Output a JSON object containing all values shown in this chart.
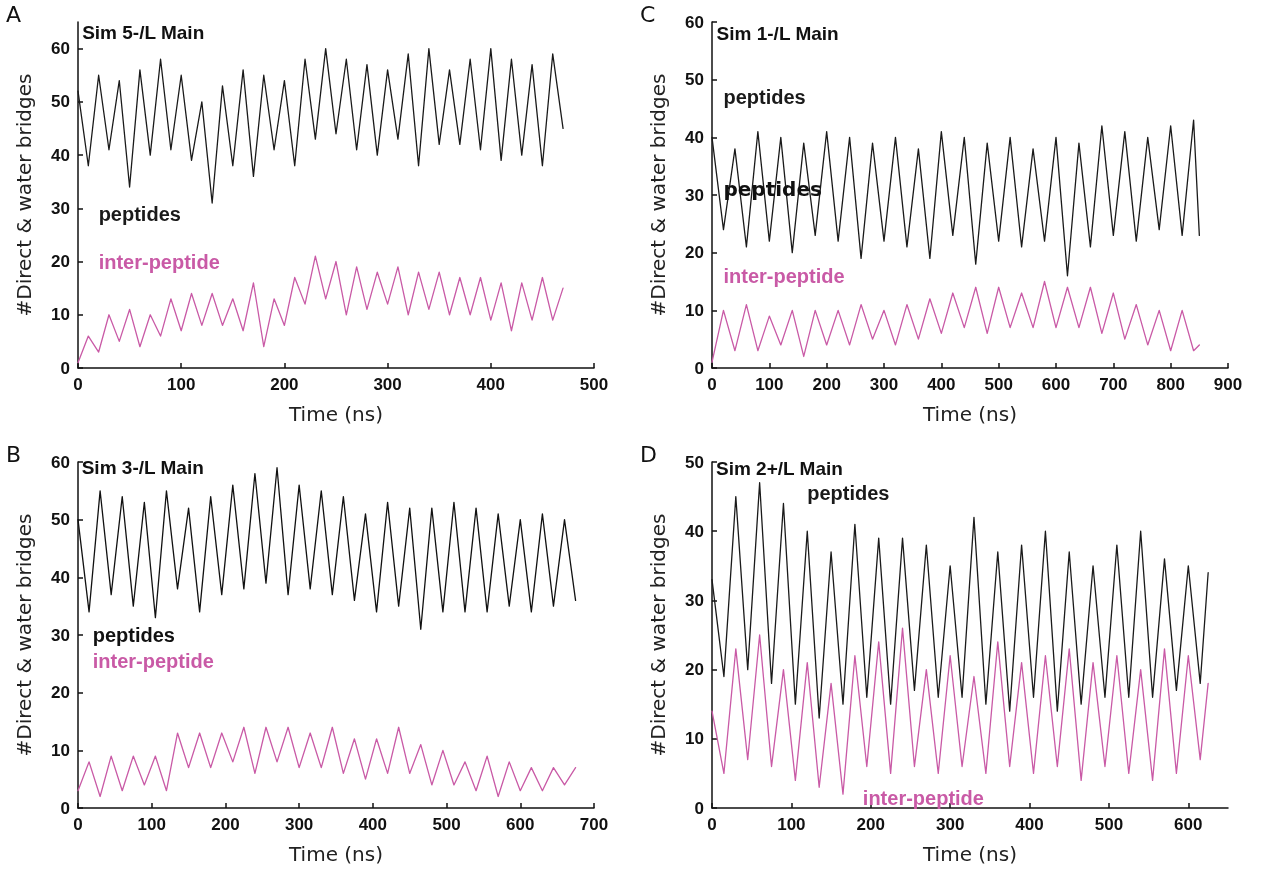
{
  "chart_data": [
    {
      "type": "line",
      "title": "Sim 5-/L Main",
      "xlabel": "Time (ns)",
      "ylabel": "#Direct & water bridges",
      "annotations": [
        "A"
      ],
      "marker": "none",
      "line_style": "solid",
      "xlim": [
        0,
        500
      ],
      "xticks": [
        0,
        100,
        200,
        300,
        400,
        500
      ],
      "ylim": [
        0,
        65
      ],
      "yticks": [
        0,
        10,
        20,
        30,
        40,
        50,
        60
      ],
      "x": [
        0,
        10,
        20,
        30,
        40,
        50,
        60,
        70,
        80,
        90,
        100,
        110,
        120,
        130,
        140,
        150,
        160,
        170,
        180,
        190,
        200,
        210,
        220,
        230,
        240,
        250,
        260,
        270,
        280,
        290,
        300,
        310,
        320,
        330,
        340,
        350,
        360,
        370,
        380,
        390,
        400,
        410,
        420,
        430,
        440,
        450,
        460,
        470
      ],
      "series": [
        {
          "name": "peptides",
          "color": "#1a1a1a",
          "values": [
            52,
            38,
            55,
            41,
            54,
            34,
            56,
            40,
            58,
            41,
            55,
            39,
            50,
            31,
            53,
            38,
            56,
            36,
            55,
            41,
            54,
            38,
            58,
            43,
            60,
            44,
            58,
            41,
            57,
            40,
            56,
            43,
            59,
            38,
            60,
            42,
            56,
            42,
            58,
            41,
            60,
            39,
            58,
            40,
            57,
            38,
            59,
            45
          ]
        },
        {
          "name": "inter-peptide",
          "color": "#c95aa6",
          "values": [
            1,
            6,
            3,
            10,
            5,
            11,
            4,
            10,
            6,
            13,
            7,
            14,
            8,
            14,
            8,
            13,
            7,
            16,
            4,
            13,
            8,
            17,
            12,
            21,
            13,
            20,
            10,
            19,
            11,
            18,
            12,
            19,
            10,
            18,
            11,
            18,
            10,
            17,
            10,
            17,
            9,
            16,
            7,
            16,
            9,
            17,
            9,
            15
          ]
        }
      ]
    },
    {
      "type": "line",
      "title": "Sim 1-/L Main",
      "xlabel": "Time (ns)",
      "ylabel": "#Direct & water bridges",
      "annotations": [
        "C",
        "peptides"
      ],
      "marker": "none",
      "line_style": "solid",
      "xlim": [
        0,
        900
      ],
      "xticks": [
        0,
        100,
        200,
        300,
        400,
        500,
        600,
        700,
        800,
        900
      ],
      "ylim": [
        0,
        60
      ],
      "yticks": [
        0,
        10,
        20,
        30,
        40,
        50,
        60
      ],
      "x": [
        0,
        20,
        40,
        60,
        80,
        100,
        120,
        140,
        160,
        180,
        200,
        220,
        240,
        260,
        280,
        300,
        320,
        340,
        360,
        380,
        400,
        420,
        440,
        460,
        480,
        500,
        520,
        540,
        560,
        580,
        600,
        620,
        640,
        660,
        680,
        700,
        720,
        740,
        760,
        780,
        800,
        820,
        840,
        850
      ],
      "series": [
        {
          "name": "peptides",
          "color": "#1a1a1a",
          "values": [
            40,
            24,
            38,
            21,
            41,
            22,
            40,
            20,
            39,
            23,
            41,
            22,
            40,
            19,
            39,
            22,
            40,
            21,
            38,
            19,
            41,
            23,
            40,
            18,
            39,
            22,
            40,
            21,
            38,
            22,
            40,
            16,
            39,
            21,
            42,
            23,
            41,
            22,
            40,
            24,
            42,
            23,
            43,
            23
          ]
        },
        {
          "name": "inter-peptide",
          "color": "#c95aa6",
          "values": [
            1,
            10,
            3,
            11,
            3,
            9,
            4,
            10,
            2,
            10,
            4,
            10,
            4,
            11,
            5,
            10,
            4,
            11,
            5,
            12,
            6,
            13,
            7,
            14,
            6,
            14,
            7,
            13,
            7,
            15,
            7,
            14,
            7,
            14,
            6,
            13,
            5,
            11,
            4,
            10,
            3,
            10,
            3,
            4
          ]
        }
      ]
    },
    {
      "type": "line",
      "title": "Sim 3-/L Main",
      "xlabel": "Time (ns)",
      "ylabel": "#Direct & water bridges",
      "annotations": [
        "B"
      ],
      "marker": "none",
      "line_style": "solid",
      "xlim": [
        0,
        700
      ],
      "xticks": [
        0,
        100,
        200,
        300,
        400,
        500,
        600,
        700
      ],
      "ylim": [
        0,
        60
      ],
      "yticks": [
        0,
        10,
        20,
        30,
        40,
        50,
        60
      ],
      "x": [
        0,
        15,
        30,
        45,
        60,
        75,
        90,
        105,
        120,
        135,
        150,
        165,
        180,
        195,
        210,
        225,
        240,
        255,
        270,
        285,
        300,
        315,
        330,
        345,
        360,
        375,
        390,
        405,
        420,
        435,
        450,
        465,
        480,
        495,
        510,
        525,
        540,
        555,
        570,
        585,
        600,
        615,
        630,
        645,
        660,
        675
      ],
      "series": [
        {
          "name": "peptides",
          "color": "#111111",
          "values": [
            50,
            34,
            55,
            37,
            54,
            35,
            53,
            33,
            55,
            38,
            52,
            34,
            54,
            37,
            56,
            38,
            58,
            39,
            59,
            37,
            56,
            38,
            55,
            37,
            54,
            36,
            51,
            34,
            53,
            35,
            52,
            31,
            52,
            34,
            53,
            34,
            52,
            34,
            51,
            35,
            50,
            34,
            51,
            35,
            50,
            36
          ]
        },
        {
          "name": "inter-peptide",
          "color": "#c95aa6",
          "values": [
            3,
            8,
            2,
            9,
            3,
            9,
            4,
            9,
            3,
            13,
            7,
            13,
            7,
            13,
            8,
            14,
            6,
            14,
            8,
            14,
            7,
            13,
            7,
            14,
            6,
            12,
            5,
            12,
            6,
            14,
            6,
            11,
            4,
            10,
            4,
            8,
            3,
            9,
            2,
            8,
            3,
            7,
            3,
            7,
            4,
            7
          ]
        }
      ]
    },
    {
      "type": "line",
      "title": "Sim 2+/L Main",
      "xlabel": "Time (ns)",
      "ylabel": "#Direct & water bridges",
      "annotations": [
        "D"
      ],
      "marker": "none",
      "line_style": "solid",
      "xlim": [
        0,
        650
      ],
      "xticks": [
        0,
        100,
        200,
        300,
        400,
        500,
        600
      ],
      "ylim": [
        0,
        50
      ],
      "yticks": [
        0,
        10,
        20,
        30,
        40,
        50
      ],
      "x": [
        0,
        15,
        30,
        45,
        60,
        75,
        90,
        105,
        120,
        135,
        150,
        165,
        180,
        195,
        210,
        225,
        240,
        255,
        270,
        285,
        300,
        315,
        330,
        345,
        360,
        375,
        390,
        405,
        420,
        435,
        450,
        465,
        480,
        495,
        510,
        525,
        540,
        555,
        570,
        585,
        600,
        615,
        625
      ],
      "series": [
        {
          "name": "peptides",
          "color": "#1a1a1a",
          "values": [
            33,
            19,
            45,
            20,
            47,
            18,
            44,
            15,
            40,
            13,
            37,
            15,
            41,
            16,
            39,
            15,
            39,
            17,
            38,
            16,
            35,
            16,
            42,
            15,
            37,
            14,
            38,
            16,
            40,
            14,
            37,
            15,
            35,
            16,
            38,
            16,
            40,
            16,
            36,
            17,
            35,
            18,
            34
          ]
        },
        {
          "name": "inter-peptide",
          "color": "#c95aa6",
          "values": [
            14,
            5,
            23,
            7,
            25,
            6,
            20,
            4,
            21,
            3,
            18,
            2,
            22,
            6,
            24,
            5,
            26,
            6,
            20,
            5,
            22,
            6,
            19,
            5,
            24,
            6,
            21,
            5,
            22,
            6,
            23,
            4,
            21,
            6,
            22,
            5,
            20,
            4,
            23,
            5,
            22,
            7,
            18
          ]
        }
      ]
    }
  ]
}
